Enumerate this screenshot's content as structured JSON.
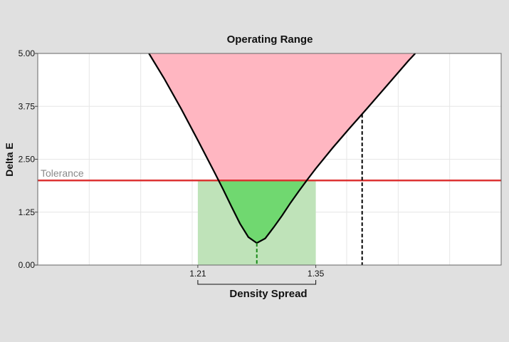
{
  "chart_data": {
    "type": "area",
    "title": "Operating Range",
    "xlabel": "Density Spread",
    "ylabel": "Delta E",
    "xlim": [
      1.02,
      1.57
    ],
    "ylim": [
      0,
      5
    ],
    "y_ticks": [
      "0.00",
      "1.25",
      "2.50",
      "3.75",
      "5.00"
    ],
    "x_ticks": [
      {
        "value": 1.21,
        "label": "1.21"
      },
      {
        "value": 1.35,
        "label": "1.35"
      }
    ],
    "grid": true,
    "tolerance": {
      "label": "Tolerance",
      "value": 2.0,
      "color": "#dd3333"
    },
    "operating_range": {
      "x_min": 1.21,
      "x_max": 1.35,
      "color": "#bfe3b9"
    },
    "minimum": {
      "x": 1.28,
      "y": 0.52
    },
    "marker_x": 1.405,
    "curve": {
      "color": "#000000",
      "points": [
        [
          1.152,
          5.0
        ],
        [
          1.17,
          4.41
        ],
        [
          1.19,
          3.7
        ],
        [
          1.21,
          2.95
        ],
        [
          1.23,
          2.18
        ],
        [
          1.24,
          1.79
        ],
        [
          1.25,
          1.38
        ],
        [
          1.26,
          0.98
        ],
        [
          1.27,
          0.66
        ],
        [
          1.28,
          0.52
        ],
        [
          1.29,
          0.63
        ],
        [
          1.3,
          0.89
        ],
        [
          1.31,
          1.17
        ],
        [
          1.32,
          1.47
        ],
        [
          1.33,
          1.75
        ],
        [
          1.34,
          2.02
        ],
        [
          1.35,
          2.28
        ],
        [
          1.37,
          2.77
        ],
        [
          1.39,
          3.23
        ],
        [
          1.41,
          3.68
        ],
        [
          1.43,
          4.14
        ],
        [
          1.46,
          4.83
        ],
        [
          1.468,
          5.0
        ]
      ]
    },
    "fill_colors": {
      "above_tolerance": "#ffb6c1",
      "below_tolerance": "#70d870"
    }
  }
}
